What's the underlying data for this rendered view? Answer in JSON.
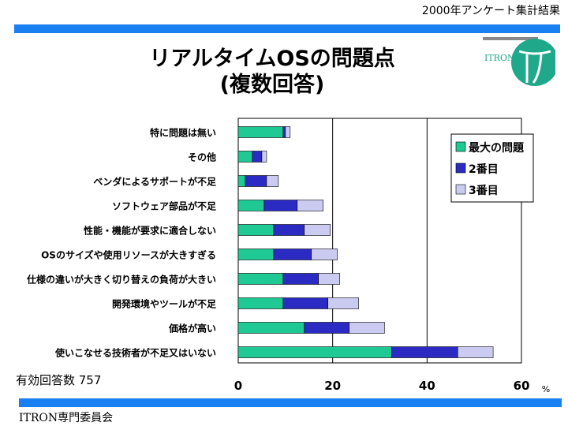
{
  "header": {
    "top_right": "2000年アンケート集計結果"
  },
  "title_line1": "リアルタイムOSの問題点",
  "title_line2": "(複数回答)",
  "logo_text": "ITRON",
  "respondents": "有効回答数 757",
  "footer": "ITRON専門委員会",
  "colors": {
    "band": "#1a7ff0",
    "s1": "#1fc994",
    "s2": "#2b2bc4",
    "s3": "#cbcbf2",
    "logo": "#1fa88a"
  },
  "chart_data": {
    "type": "bar",
    "orientation": "horizontal",
    "stacked": true,
    "categories": [
      "特に問題は無い",
      "その他",
      "ベンダによるサポートが不足",
      "ソフトウェア部品が不足",
      "性能・機能が要求に適合しない",
      "OSのサイズや使用リソースが大きすぎる",
      "仕様の違いが大きく切り替えの負荷が大きい",
      "開発環境やツールが不足",
      "価格が高い",
      "使いこなせる技術者が不足又はいない"
    ],
    "series": [
      {
        "name": "最大の問題",
        "values": [
          9.5,
          3,
          1.5,
          5.5,
          7.5,
          7.5,
          9.5,
          9.5,
          14,
          32.5
        ]
      },
      {
        "name": "2番目",
        "values": [
          0.5,
          2,
          4.5,
          7,
          6.5,
          8,
          7.5,
          9.5,
          9.5,
          14
        ]
      },
      {
        "name": "3番目",
        "values": [
          1,
          1,
          2.5,
          5.5,
          5.5,
          5.5,
          4.5,
          6.5,
          7.5,
          7.5
        ]
      }
    ],
    "xlim": [
      0,
      60
    ],
    "xticks": [
      0,
      20,
      40,
      60
    ],
    "xunit": "%",
    "grid": true,
    "legend": "top-right"
  }
}
